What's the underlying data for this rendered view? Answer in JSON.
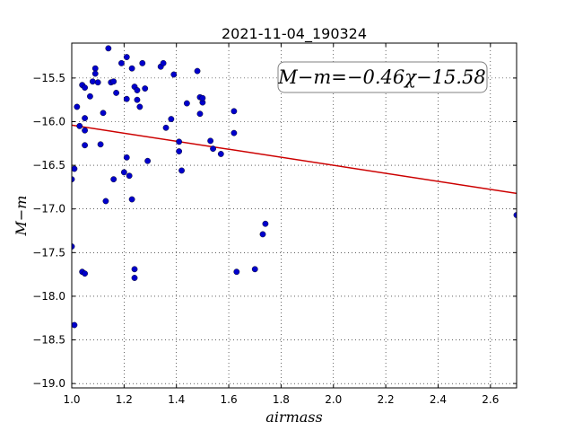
{
  "chart_data": {
    "type": "scatter",
    "title": "2021-11-04_190324",
    "xlabel": "airmass",
    "ylabel": "M−m",
    "xlim": [
      1.0,
      2.7
    ],
    "ylim": [
      -19.05,
      -15.1
    ],
    "y_inverted": true,
    "grid": true,
    "x_ticks": [
      1.0,
      1.2,
      1.4,
      1.6,
      1.8,
      2.0,
      2.2,
      2.4,
      2.6
    ],
    "x_tick_labels": [
      "1.0",
      "1.2",
      "1.4",
      "1.6",
      "1.8",
      "2.0",
      "2.2",
      "2.4",
      "2.6"
    ],
    "y_ticks": [
      -15.5,
      -16.0,
      -16.5,
      -17.0,
      -17.5,
      -18.0,
      -18.5,
      -19.0
    ],
    "y_tick_labels": [
      "−15.5",
      "−16.0",
      "−16.5",
      "−17.0",
      "−17.5",
      "−18.0",
      "−18.5",
      "−19.0"
    ],
    "annotation": "M−m=−0.46χ−15.58",
    "fit_line": {
      "slope": -0.46,
      "intercept": -15.58
    },
    "colors": {
      "points": "#0000cc",
      "fit": "#cc0000"
    },
    "points": [
      {
        "x": 1.0,
        "y": -16.66
      },
      {
        "x": 1.0,
        "y": -17.43
      },
      {
        "x": 1.01,
        "y": -16.54
      },
      {
        "x": 1.01,
        "y": -18.33
      },
      {
        "x": 1.02,
        "y": -15.83
      },
      {
        "x": 1.03,
        "y": -16.05
      },
      {
        "x": 1.04,
        "y": -15.58
      },
      {
        "x": 1.04,
        "y": -17.72
      },
      {
        "x": 1.05,
        "y": -17.74
      },
      {
        "x": 1.05,
        "y": -15.61
      },
      {
        "x": 1.05,
        "y": -15.96
      },
      {
        "x": 1.05,
        "y": -16.1
      },
      {
        "x": 1.05,
        "y": -16.27
      },
      {
        "x": 1.07,
        "y": -15.71
      },
      {
        "x": 1.08,
        "y": -15.54
      },
      {
        "x": 1.09,
        "y": -15.39
      },
      {
        "x": 1.09,
        "y": -15.45
      },
      {
        "x": 1.1,
        "y": -15.55
      },
      {
        "x": 1.11,
        "y": -16.26
      },
      {
        "x": 1.12,
        "y": -15.9
      },
      {
        "x": 1.13,
        "y": -16.91
      },
      {
        "x": 1.14,
        "y": -15.16
      },
      {
        "x": 1.15,
        "y": -15.55
      },
      {
        "x": 1.16,
        "y": -15.54
      },
      {
        "x": 1.16,
        "y": -16.66
      },
      {
        "x": 1.17,
        "y": -15.67
      },
      {
        "x": 1.19,
        "y": -15.33
      },
      {
        "x": 1.2,
        "y": -16.58
      },
      {
        "x": 1.21,
        "y": -15.74
      },
      {
        "x": 1.21,
        "y": -15.26
      },
      {
        "x": 1.21,
        "y": -16.41
      },
      {
        "x": 1.22,
        "y": -16.62
      },
      {
        "x": 1.23,
        "y": -15.39
      },
      {
        "x": 1.23,
        "y": -16.89
      },
      {
        "x": 1.24,
        "y": -17.69
      },
      {
        "x": 1.24,
        "y": -17.79
      },
      {
        "x": 1.24,
        "y": -15.6
      },
      {
        "x": 1.25,
        "y": -15.64
      },
      {
        "x": 1.25,
        "y": -15.75
      },
      {
        "x": 1.26,
        "y": -15.83
      },
      {
        "x": 1.27,
        "y": -15.33
      },
      {
        "x": 1.28,
        "y": -15.62
      },
      {
        "x": 1.29,
        "y": -16.45
      },
      {
        "x": 1.34,
        "y": -15.37
      },
      {
        "x": 1.35,
        "y": -15.33
      },
      {
        "x": 1.36,
        "y": -16.07
      },
      {
        "x": 1.38,
        "y": -15.97
      },
      {
        "x": 1.39,
        "y": -15.46
      },
      {
        "x": 1.41,
        "y": -16.34
      },
      {
        "x": 1.41,
        "y": -16.23
      },
      {
        "x": 1.42,
        "y": -16.56
      },
      {
        "x": 1.44,
        "y": -15.79
      },
      {
        "x": 1.48,
        "y": -15.42
      },
      {
        "x": 1.49,
        "y": -15.91
      },
      {
        "x": 1.49,
        "y": -15.72
      },
      {
        "x": 1.5,
        "y": -15.78
      },
      {
        "x": 1.5,
        "y": -15.73
      },
      {
        "x": 1.53,
        "y": -16.22
      },
      {
        "x": 1.54,
        "y": -16.31
      },
      {
        "x": 1.57,
        "y": -16.37
      },
      {
        "x": 1.62,
        "y": -16.13
      },
      {
        "x": 1.62,
        "y": -15.88
      },
      {
        "x": 1.63,
        "y": -17.72
      },
      {
        "x": 1.7,
        "y": -17.69
      },
      {
        "x": 1.73,
        "y": -17.29
      },
      {
        "x": 1.74,
        "y": -17.17
      },
      {
        "x": 2.7,
        "y": -17.07
      }
    ]
  }
}
